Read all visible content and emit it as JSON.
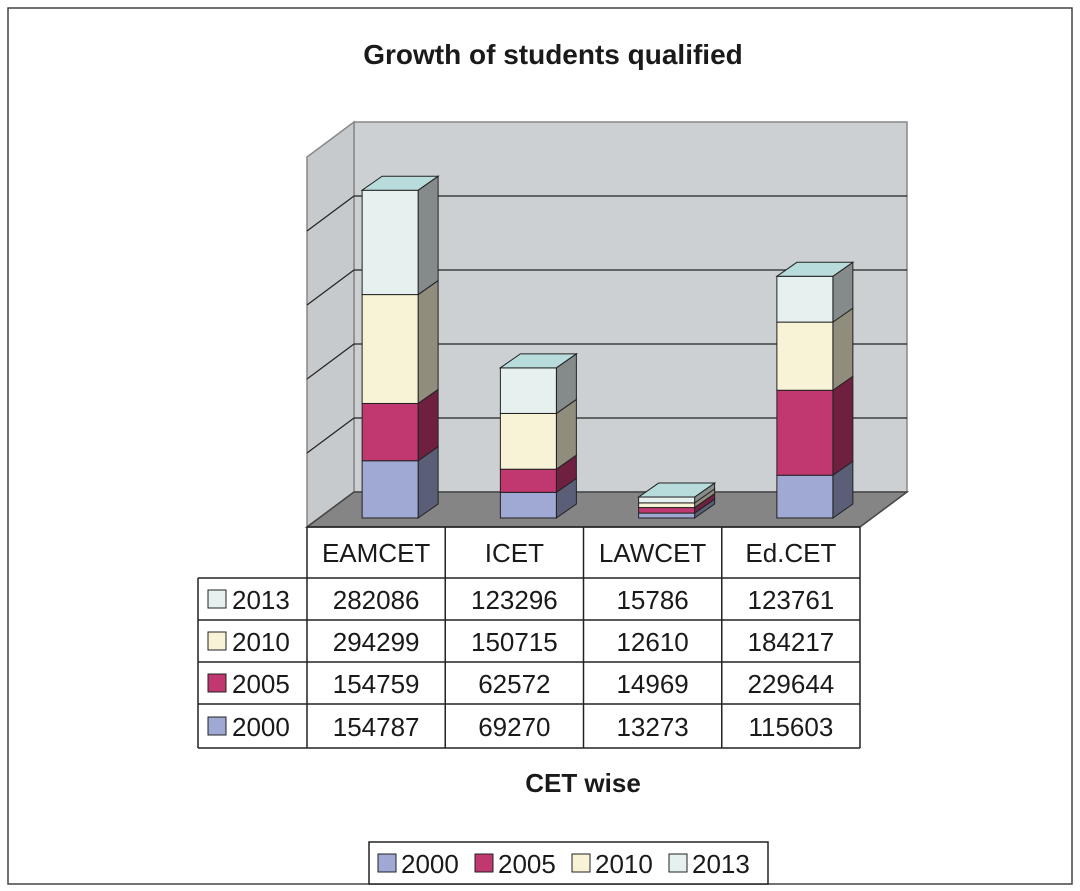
{
  "chart_data": {
    "type": "bar3d_stacked",
    "title": "Growth of students qualified",
    "x_label": "CET wise",
    "categories": [
      "EAMCET",
      "ICET",
      "LAWCET",
      "Ed.CET"
    ],
    "series": [
      {
        "name": "2000",
        "color": "#a0a8d4",
        "values": [
          154787,
          69270,
          13273,
          115603
        ]
      },
      {
        "name": "2005",
        "color": "#c0386f",
        "values": [
          154759,
          62572,
          14969,
          229644
        ]
      },
      {
        "name": "2010",
        "color": "#f8f3d6",
        "values": [
          294299,
          150715,
          12610,
          184217
        ]
      },
      {
        "name": "2013",
        "color": "#e6f0ef",
        "values": [
          282086,
          123296,
          15786,
          123761
        ]
      }
    ],
    "ylim": [
      0,
      1000000
    ],
    "yticks": [
      0,
      200000,
      400000,
      600000,
      800000,
      1000000
    ],
    "grid": true,
    "legend": "bottom"
  }
}
